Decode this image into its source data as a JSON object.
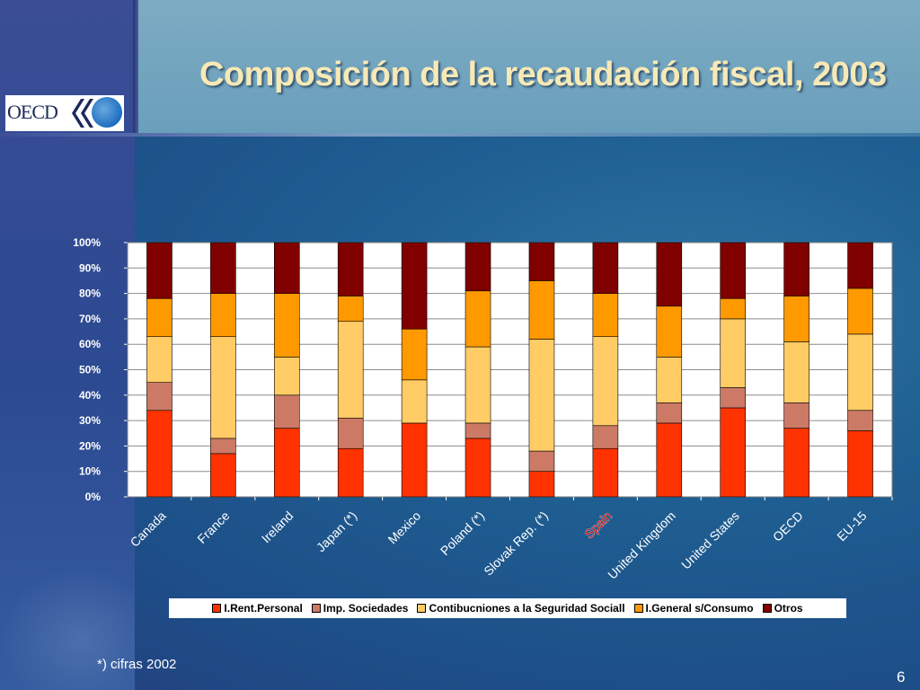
{
  "slide": {
    "title": "Composición de la recaudación fiscal, 2003",
    "logo_text": "OECD",
    "footnote": "*) cifras 2002",
    "page_number": "6"
  },
  "chart_data": {
    "type": "bar",
    "stacked": true,
    "percent_stacked": true,
    "title": "",
    "xlabel": "",
    "ylabel": "",
    "ylim": [
      0,
      100
    ],
    "yticks": [
      "0%",
      "10%",
      "20%",
      "30%",
      "40%",
      "50%",
      "60%",
      "70%",
      "80%",
      "90%",
      "100%"
    ],
    "categories": [
      "Canada",
      "France",
      "Ireland",
      "Japan (*)",
      "Mexico",
      "Poland (*)",
      "Slovak Rep. (*)",
      "Spain",
      "United Kingdom",
      "United States",
      "OECD",
      "EU-15"
    ],
    "highlight_category": "Spain",
    "highlight_color": "#cc0000",
    "legend_position": "bottom",
    "series": [
      {
        "name": "I.Rent.Personal",
        "color": "#ff3300",
        "values": [
          34,
          17,
          27,
          19,
          29,
          23,
          10,
          19,
          29,
          35,
          27,
          26
        ]
      },
      {
        "name": "Imp. Sociedades",
        "color": "#cc7a66",
        "values": [
          11,
          6,
          13,
          12,
          0,
          6,
          8,
          9,
          8,
          8,
          10,
          8
        ]
      },
      {
        "name": "Contibucniones a la Seguridad Sociall",
        "color": "#ffcc66",
        "values": [
          18,
          40,
          15,
          38,
          17,
          30,
          44,
          35,
          18,
          27,
          24,
          30
        ]
      },
      {
        "name": "I.General s/Consumo",
        "color": "#ff9900",
        "values": [
          15,
          17,
          25,
          10,
          20,
          22,
          23,
          17,
          20,
          8,
          18,
          18
        ]
      },
      {
        "name": "Otros",
        "color": "#800000",
        "values": [
          22,
          20,
          20,
          21,
          34,
          19,
          15,
          20,
          25,
          22,
          21,
          18
        ]
      }
    ]
  }
}
